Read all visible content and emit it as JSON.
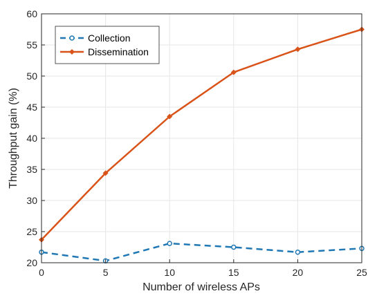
{
  "chart_data": {
    "type": "line",
    "xlabel": "Number of wireless APs",
    "ylabel": "Throughput gain (%)",
    "xlim": [
      0,
      25
    ],
    "ylim": [
      20,
      60
    ],
    "x": [
      0,
      5,
      10,
      15,
      20,
      25
    ],
    "xticks": [
      "0",
      "5",
      "10",
      "15",
      "20",
      "25"
    ],
    "yticks": [
      "20",
      "25",
      "30",
      "35",
      "40",
      "45",
      "50",
      "55",
      "60"
    ],
    "grid": true,
    "legend_position": "top-left",
    "series": [
      {
        "name": "Collection",
        "values": [
          21.7,
          20.3,
          23.1,
          22.5,
          21.7,
          22.3
        ],
        "color": "#1f77b4",
        "line_style": "dashed",
        "marker": "open-circle"
      },
      {
        "name": "Dissemination",
        "values": [
          23.7,
          34.4,
          43.5,
          50.6,
          54.3,
          57.5
        ],
        "color": "#d95319",
        "line_style": "solid",
        "marker": "filled-diamond"
      }
    ]
  }
}
